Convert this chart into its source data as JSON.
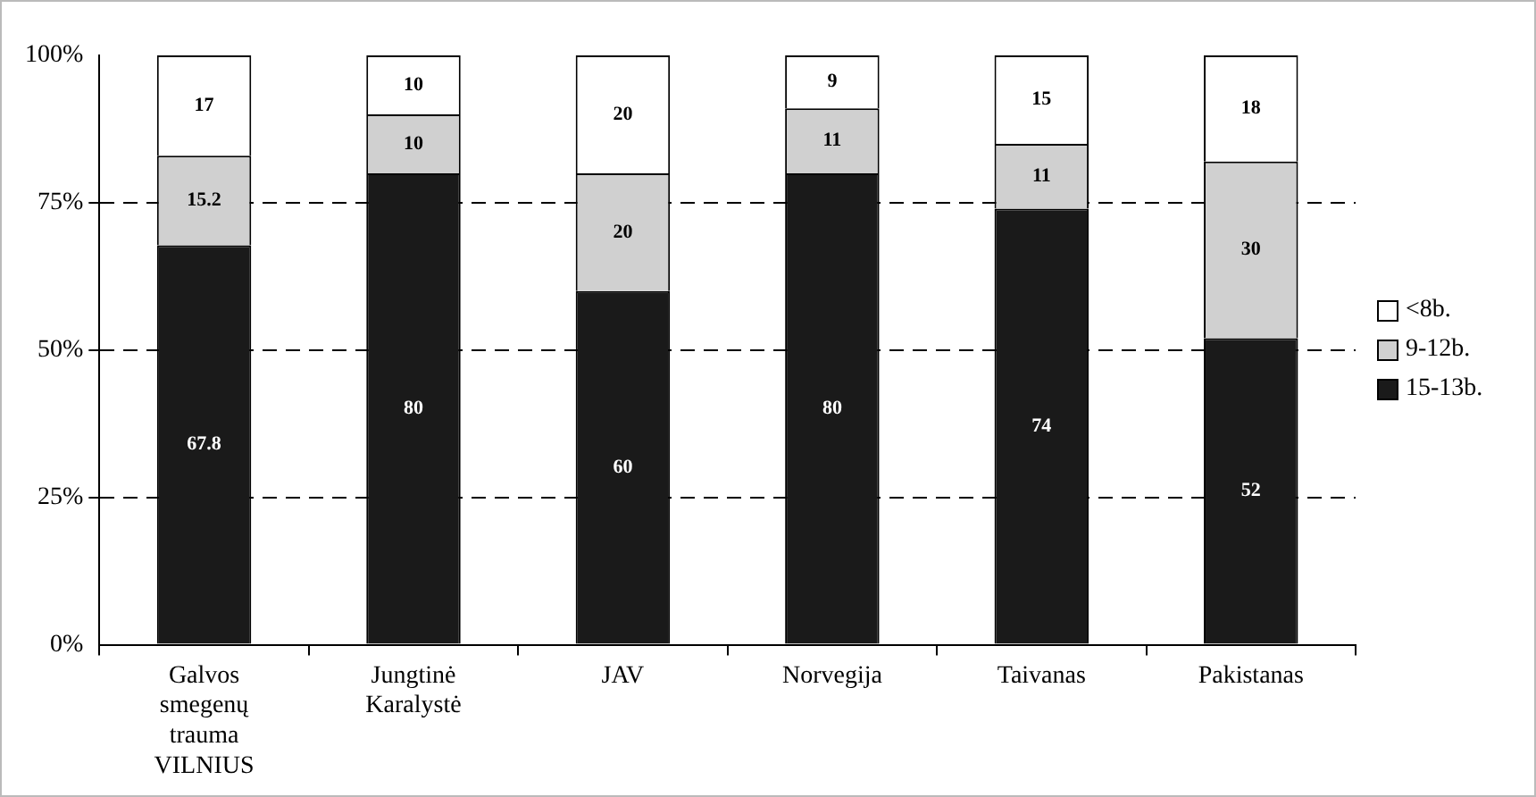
{
  "chart_data": {
    "type": "bar",
    "stacked": true,
    "categories": [
      "Galvos smegenų trauma VILNIUS",
      "Jungtinė Karalystė",
      "JAV",
      "Norvegija",
      "Taivanas",
      "Pakistanas"
    ],
    "series": [
      {
        "name": "15-13b.",
        "color": "#1a1a1a",
        "values": [
          67.8,
          80,
          60,
          80,
          74,
          52
        ]
      },
      {
        "name": "9-12b.",
        "color": "#d0d0d0",
        "values": [
          15.2,
          10,
          20,
          11,
          11,
          30
        ]
      },
      {
        "name": "<8b.",
        "color": "#ffffff",
        "values": [
          17,
          10,
          20,
          9,
          15,
          18
        ]
      }
    ],
    "ylim": [
      0,
      100
    ],
    "yticks": [
      {
        "value": 0,
        "label": "0%"
      },
      {
        "value": 25,
        "label": "25%"
      },
      {
        "value": 50,
        "label": "50%"
      },
      {
        "value": 75,
        "label": "75%"
      },
      {
        "value": 100,
        "label": "100%"
      }
    ],
    "grid": "y",
    "legend": "right",
    "data_labels": true
  }
}
